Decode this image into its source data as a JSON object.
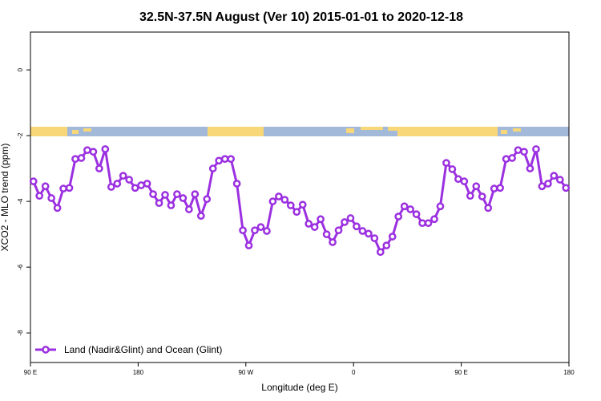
{
  "chart_data": {
    "type": "line",
    "title": "32.5N-37.5N August (Ver 10)   2015-01-01 to 2020-12-18",
    "x_label": "Longitude (deg E)",
    "y_label": "XCO2 - MLO trend (ppm)",
    "xlim": [
      90,
      540
    ],
    "ylim": [
      -8.9,
      1.15
    ],
    "xticks": [
      {
        "value": 90,
        "label": "90 E"
      },
      180,
      {
        "value": 270,
        "label": "90 W"
      },
      {
        "value": 360,
        "label": "0"
      },
      {
        "value": 450,
        "label": "90 E"
      },
      {
        "value": 540,
        "label": "180"
      }
    ],
    "yticks": [
      0,
      -2,
      -4,
      -6,
      -8
    ],
    "legend": "bottom-left",
    "x": [
      92.5,
      97.5,
      102.5,
      107.5,
      112.5,
      117.5,
      122.5,
      127.5,
      132.5,
      137.5,
      142.5,
      147.5,
      152.5,
      157.5,
      162.5,
      167.5,
      172.5,
      177.5,
      182.5,
      187.5,
      192.5,
      197.5,
      202.5,
      207.5,
      212.5,
      217.5,
      222.5,
      227.5,
      232.5,
      237.5,
      242.5,
      247.5,
      252.5,
      257.5,
      262.5,
      267.5,
      272.5,
      277.5,
      282.5,
      287.5,
      292.5,
      297.5,
      302.5,
      307.5,
      312.5,
      317.5,
      322.5,
      327.5,
      332.5,
      337.5,
      342.5,
      347.5,
      352.5,
      357.5,
      362.5,
      367.5,
      372.5,
      377.5,
      382.5,
      387.5,
      392.5,
      397.5,
      402.5,
      407.5,
      412.5,
      417.5,
      422.5,
      427.5,
      432.5,
      437.5,
      442.5,
      447.5,
      452.5,
      457.5,
      462.5,
      467.5,
      472.5,
      477.5,
      482.5,
      487.5,
      492.5,
      497.5,
      502.5,
      507.5,
      512.5,
      517.5,
      522.5,
      527.5,
      532.5,
      537.5
    ],
    "series": [
      {
        "name": "Land (Nadir&Glint) and Ocean (Glint)",
        "color": "#9b30e0",
        "values": [
          -3.39,
          -3.83,
          -3.54,
          -3.9,
          -4.2,
          -3.61,
          -3.59,
          -2.71,
          -2.68,
          -2.44,
          -2.49,
          -3.0,
          -2.41,
          -3.56,
          -3.46,
          -3.22,
          -3.34,
          -3.59,
          -3.51,
          -3.46,
          -3.78,
          -4.05,
          -3.8,
          -4.12,
          -3.78,
          -3.9,
          -4.24,
          -3.78,
          -4.44,
          -3.93,
          -3.0,
          -2.76,
          -2.71,
          -2.71,
          -3.46,
          -4.88,
          -5.34,
          -4.88,
          -4.78,
          -4.9,
          -4.0,
          -3.85,
          -3.95,
          -4.12,
          -4.32,
          -4.1,
          -4.68,
          -4.78,
          -4.54,
          -5.0,
          -5.24,
          -4.88,
          -4.63,
          -4.51,
          -4.76,
          -4.9,
          -4.98,
          -5.12,
          -5.54,
          -5.34,
          -5.07,
          -4.46,
          -4.15,
          -4.24,
          -4.39,
          -4.66,
          -4.66,
          -4.54,
          -4.15,
          -2.83,
          -3.02,
          -3.32,
          -3.39,
          -3.83,
          -3.54,
          -3.85,
          -4.2,
          -3.61,
          -3.59,
          -2.71,
          -2.68,
          -2.44,
          -2.49,
          -3.0,
          -2.41,
          -3.54,
          -3.46,
          -3.22,
          -3.34,
          -3.59
        ]
      }
    ]
  }
}
